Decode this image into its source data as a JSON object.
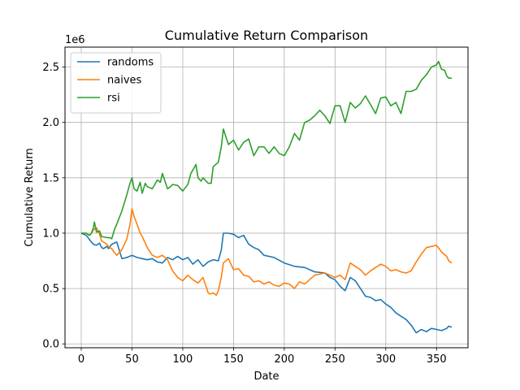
{
  "chart_data": {
    "type": "line",
    "title": "Cumulative Return Comparison",
    "xlabel": "Date",
    "ylabel": "Cumulative Return",
    "y_offset_text": "1e6",
    "xlim": [
      -16,
      381
    ],
    "ylim": [
      -35000,
      2680000
    ],
    "x_ticks": [
      0,
      50,
      100,
      150,
      200,
      250,
      300,
      350
    ],
    "y_ticks": [
      0.0,
      0.5,
      1.0,
      1.5,
      2.0,
      2.5
    ],
    "y_tick_scale": 1000000,
    "grid": true,
    "legend_position": "top-left",
    "series": [
      {
        "name": "randoms",
        "color": "#1f77b4",
        "x": [
          0,
          5,
          10,
          12,
          15,
          18,
          20,
          22,
          25,
          27,
          30,
          35,
          40,
          45,
          50,
          55,
          60,
          65,
          70,
          75,
          80,
          85,
          90,
          95,
          100,
          105,
          110,
          115,
          120,
          125,
          130,
          135,
          138,
          140,
          145,
          150,
          155,
          160,
          165,
          170,
          175,
          180,
          190,
          200,
          210,
          220,
          230,
          240,
          245,
          250,
          255,
          260,
          265,
          270,
          275,
          280,
          285,
          290,
          295,
          300,
          305,
          310,
          315,
          320,
          325,
          330,
          335,
          340,
          345,
          350,
          355,
          360,
          362,
          365
        ],
        "values": [
          1000000,
          980000,
          920000,
          900000,
          890000,
          910000,
          870000,
          860000,
          880000,
          860000,
          900000,
          920000,
          770000,
          780000,
          800000,
          780000,
          770000,
          760000,
          770000,
          740000,
          730000,
          780000,
          760000,
          790000,
          760000,
          780000,
          720000,
          760000,
          700000,
          740000,
          760000,
          750000,
          850000,
          1000000,
          1000000,
          990000,
          960000,
          980000,
          900000,
          870000,
          850000,
          800000,
          780000,
          730000,
          700000,
          690000,
          650000,
          640000,
          600000,
          580000,
          520000,
          480000,
          600000,
          570000,
          500000,
          430000,
          420000,
          390000,
          400000,
          360000,
          330000,
          280000,
          250000,
          220000,
          170000,
          100000,
          130000,
          110000,
          140000,
          130000,
          120000,
          140000,
          160000,
          150000
        ]
      },
      {
        "name": "naives",
        "color": "#ff7f0e",
        "x": [
          0,
          5,
          8,
          10,
          12,
          15,
          18,
          20,
          22,
          25,
          28,
          30,
          33,
          35,
          40,
          45,
          48,
          50,
          52,
          55,
          58,
          60,
          65,
          70,
          75,
          80,
          85,
          90,
          95,
          100,
          105,
          110,
          115,
          120,
          125,
          127,
          130,
          133,
          135,
          138,
          140,
          145,
          150,
          155,
          160,
          165,
          170,
          175,
          180,
          185,
          190,
          195,
          200,
          205,
          210,
          215,
          220,
          225,
          230,
          235,
          240,
          245,
          250,
          255,
          260,
          265,
          270,
          275,
          280,
          285,
          290,
          295,
          300,
          305,
          310,
          315,
          320,
          325,
          330,
          335,
          340,
          345,
          350,
          355,
          360,
          362,
          365
        ],
        "values": [
          1000000,
          1000000,
          980000,
          1000000,
          1030000,
          1050000,
          990000,
          930000,
          920000,
          900000,
          870000,
          860000,
          820000,
          800000,
          850000,
          950000,
          1080000,
          1220000,
          1150000,
          1080000,
          1000000,
          970000,
          870000,
          800000,
          780000,
          800000,
          760000,
          660000,
          600000,
          570000,
          620000,
          580000,
          550000,
          600000,
          460000,
          450000,
          460000,
          440000,
          480000,
          600000,
          730000,
          770000,
          670000,
          680000,
          620000,
          610000,
          560000,
          570000,
          540000,
          560000,
          530000,
          520000,
          550000,
          540000,
          500000,
          560000,
          540000,
          580000,
          620000,
          630000,
          640000,
          620000,
          600000,
          620000,
          580000,
          730000,
          700000,
          670000,
          620000,
          660000,
          690000,
          720000,
          700000,
          660000,
          670000,
          650000,
          640000,
          660000,
          740000,
          810000,
          870000,
          880000,
          890000,
          830000,
          790000,
          750000,
          730000
        ]
      },
      {
        "name": "rsi",
        "color": "#2ca02c",
        "x": [
          0,
          5,
          8,
          10,
          12,
          13,
          15,
          18,
          20,
          25,
          28,
          30,
          33,
          35,
          40,
          45,
          48,
          50,
          52,
          55,
          58,
          60,
          63,
          65,
          70,
          75,
          78,
          80,
          85,
          88,
          90,
          95,
          100,
          105,
          108,
          110,
          113,
          115,
          118,
          120,
          125,
          128,
          130,
          135,
          138,
          140,
          145,
          150,
          155,
          160,
          165,
          170,
          175,
          180,
          185,
          190,
          195,
          200,
          205,
          210,
          215,
          220,
          225,
          230,
          235,
          240,
          245,
          250,
          255,
          260,
          265,
          270,
          275,
          280,
          285,
          290,
          295,
          300,
          305,
          310,
          315,
          320,
          325,
          330,
          335,
          340,
          345,
          350,
          352,
          355,
          358,
          360,
          362,
          365
        ],
        "values": [
          1000000,
          1000000,
          980000,
          1000000,
          1050000,
          1100000,
          1010000,
          1020000,
          970000,
          960000,
          960000,
          950000,
          1040000,
          1080000,
          1200000,
          1350000,
          1450000,
          1500000,
          1400000,
          1380000,
          1460000,
          1360000,
          1450000,
          1420000,
          1400000,
          1480000,
          1460000,
          1540000,
          1400000,
          1420000,
          1440000,
          1430000,
          1380000,
          1440000,
          1540000,
          1570000,
          1620000,
          1500000,
          1470000,
          1500000,
          1450000,
          1450000,
          1600000,
          1640000,
          1780000,
          1940000,
          1800000,
          1840000,
          1750000,
          1820000,
          1850000,
          1700000,
          1780000,
          1780000,
          1720000,
          1780000,
          1720000,
          1700000,
          1780000,
          1900000,
          1840000,
          2000000,
          2020000,
          2060000,
          2110000,
          2060000,
          1990000,
          2150000,
          2150000,
          2000000,
          2180000,
          2130000,
          2170000,
          2240000,
          2160000,
          2080000,
          2220000,
          2230000,
          2150000,
          2180000,
          2080000,
          2280000,
          2280000,
          2300000,
          2380000,
          2430000,
          2500000,
          2520000,
          2550000,
          2480000,
          2470000,
          2420000,
          2400000,
          2400000
        ]
      }
    ]
  }
}
